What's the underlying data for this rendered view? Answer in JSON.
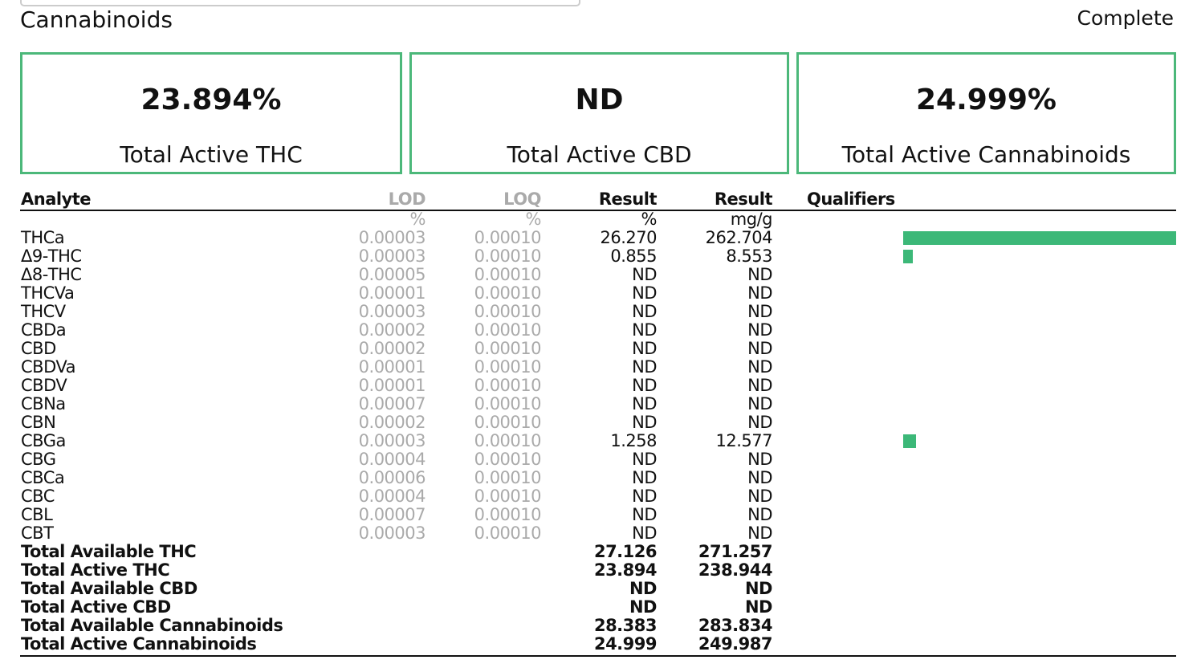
{
  "header": {
    "title": "Cannabinoids",
    "status": "Complete"
  },
  "summary": [
    {
      "value": "23.894%",
      "label": "Total Active THC"
    },
    {
      "value": "ND",
      "label": "Total Active CBD"
    },
    {
      "value": "24.999%",
      "label": "Total Active Cannabinoids"
    }
  ],
  "table": {
    "columns": [
      "Analyte",
      "LOD",
      "LOQ",
      "Result",
      "Result",
      "Qualifiers"
    ],
    "units": [
      "%",
      "%",
      "%",
      "mg/g"
    ],
    "rows": [
      [
        "THCa",
        "0.00003",
        "0.00010",
        "26.270",
        "262.704"
      ],
      [
        "Δ9-THC",
        "0.00003",
        "0.00010",
        "0.855",
        "8.553"
      ],
      [
        "Δ8-THC",
        "0.00005",
        "0.00010",
        "ND",
        "ND"
      ],
      [
        "THCVa",
        "0.00001",
        "0.00010",
        "ND",
        "ND"
      ],
      [
        "THCV",
        "0.00003",
        "0.00010",
        "ND",
        "ND"
      ],
      [
        "CBDa",
        "0.00002",
        "0.00010",
        "ND",
        "ND"
      ],
      [
        "CBD",
        "0.00002",
        "0.00010",
        "ND",
        "ND"
      ],
      [
        "CBDVa",
        "0.00001",
        "0.00010",
        "ND",
        "ND"
      ],
      [
        "CBDV",
        "0.00001",
        "0.00010",
        "ND",
        "ND"
      ],
      [
        "CBNa",
        "0.00007",
        "0.00010",
        "ND",
        "ND"
      ],
      [
        "CBN",
        "0.00002",
        "0.00010",
        "ND",
        "ND"
      ],
      [
        "CBGa",
        "0.00003",
        "0.00010",
        "1.258",
        "12.577"
      ],
      [
        "CBG",
        "0.00004",
        "0.00010",
        "ND",
        "ND"
      ],
      [
        "CBCa",
        "0.00006",
        "0.00010",
        "ND",
        "ND"
      ],
      [
        "CBC",
        "0.00004",
        "0.00010",
        "ND",
        "ND"
      ],
      [
        "CBL",
        "0.00007",
        "0.00010",
        "ND",
        "ND"
      ],
      [
        "CBT",
        "0.00003",
        "0.00010",
        "ND",
        "ND"
      ]
    ],
    "totals": [
      [
        "Total Available THC",
        "27.126",
        "271.257"
      ],
      [
        "Total Active THC",
        "23.894",
        "238.944"
      ],
      [
        "Total Available CBD",
        "ND",
        "ND"
      ],
      [
        "Total Active CBD",
        "ND",
        "ND"
      ],
      [
        "Total Available Cannabinoids",
        "28.383",
        "283.834"
      ],
      [
        "Total Active Cannabinoids",
        "24.999",
        "249.987"
      ]
    ]
  }
}
